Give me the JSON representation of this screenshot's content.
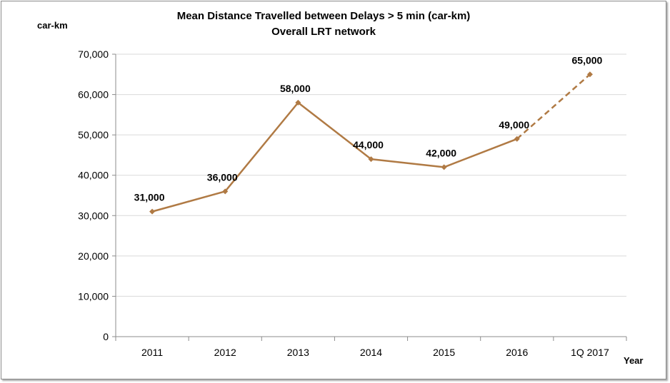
{
  "chart_data": {
    "type": "line",
    "title": "Mean Distance Travelled between Delays > 5 min (car-km)",
    "subtitle": "Overall LRT network",
    "ylabel": "car-km",
    "xlabel": "Year",
    "categories": [
      "2011",
      "2012",
      "2013",
      "2014",
      "2015",
      "2016",
      "1Q 2017"
    ],
    "ylim": [
      0,
      70000
    ],
    "yticks": [
      0,
      10000,
      20000,
      30000,
      40000,
      50000,
      60000,
      70000
    ],
    "ytick_labels": [
      "0",
      "10,000",
      "20,000",
      "30,000",
      "40,000",
      "50,000",
      "60,000",
      "70,000"
    ],
    "grid": true,
    "series": [
      {
        "values": [
          31000,
          36000,
          58000,
          44000,
          42000,
          49000,
          65000
        ],
        "data_labels": [
          "31,000",
          "36,000",
          "58,000",
          "44,000",
          "42,000",
          "49,000",
          "65,000"
        ],
        "color": "#b07a44",
        "dashed_last_segment": true
      }
    ]
  }
}
